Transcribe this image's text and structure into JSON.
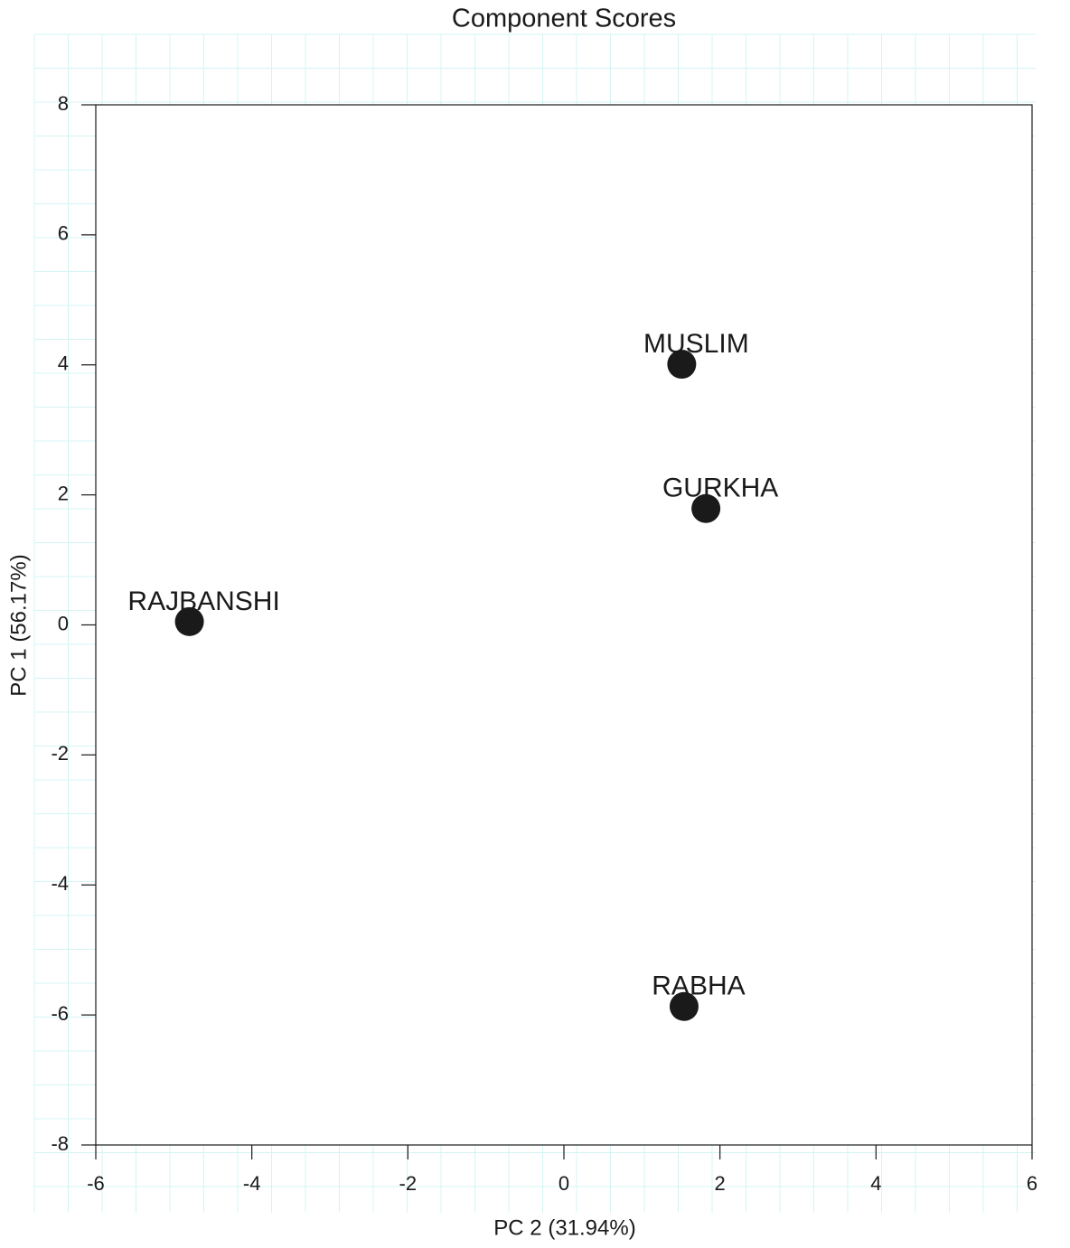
{
  "chart_data": {
    "type": "scatter",
    "title": "Component Scores",
    "x_label": "PC 2 (31.94%)",
    "y_label": "PC 1 (56.17%)",
    "series": [
      {
        "color": "#1a1a1a",
        "labels": [
          "MUSLIM",
          "GURKHA",
          "RAJBANSHI",
          "RABHA"
        ],
        "x": [
          1.51,
          1.82,
          -4.8,
          1.54
        ],
        "values": [
          4.01,
          1.79,
          0.05,
          -5.87
        ]
      }
    ],
    "xlim": [
      -6,
      6
    ],
    "xticks": [
      -6,
      -4,
      -2,
      0,
      2,
      4,
      6
    ],
    "ylim": [
      -8,
      8
    ],
    "yticks": [
      -8,
      -6,
      -4,
      -2,
      0,
      2,
      4,
      6,
      8
    ]
  }
}
